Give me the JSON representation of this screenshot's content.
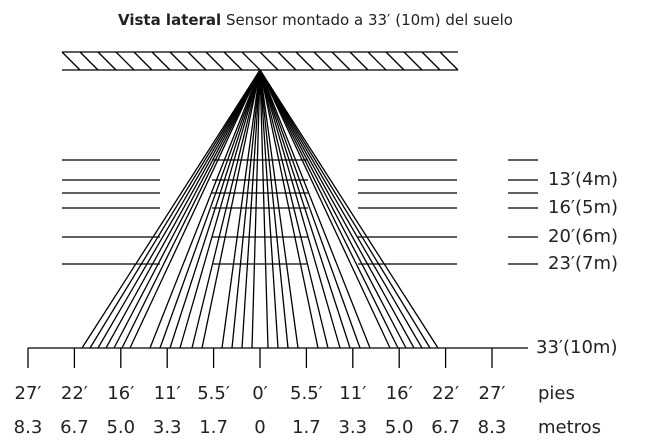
{
  "header": {
    "title_bold": "Vista lateral",
    "title_rest": "Sensor montado a 33′ (10m) del suelo"
  },
  "heights": [
    "13′(4m)",
    "16′(5m)",
    "20′(6m)",
    "23′(7m)"
  ],
  "ground_label": "33′(10m)",
  "feet": [
    "27′",
    "22′",
    "16′",
    "11′",
    "5.5′",
    "0′",
    "5.5′",
    "11′",
    "16′",
    "22′",
    "27′"
  ],
  "feet_unit": "pies",
  "meters": [
    "8.3",
    "6.7",
    "5.0",
    "3.3",
    "1.7",
    "0",
    "1.7",
    "3.3",
    "5.0",
    "6.7",
    "8.3"
  ],
  "meters_unit": "metros"
}
